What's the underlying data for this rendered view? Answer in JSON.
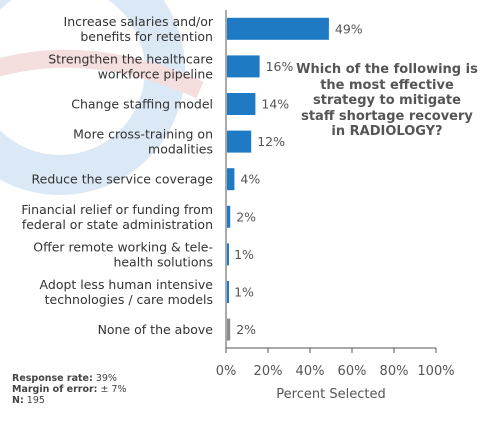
{
  "chart_data": {
    "type": "bar",
    "orientation": "horizontal",
    "categories": [
      [
        "Increase salaries and/or",
        "benefits for retention"
      ],
      [
        "Strengthen the healthcare",
        "workforce pipeline"
      ],
      [
        "Change staffing model"
      ],
      [
        "More cross-training on",
        "modalities"
      ],
      [
        "Reduce the service coverage"
      ],
      [
        "Financial relief or funding from",
        "federal or state administration"
      ],
      [
        "Offer remote working & tele-",
        "health solutions"
      ],
      [
        "Adopt less human intensive",
        "technologies / care models"
      ],
      [
        "None of the above"
      ]
    ],
    "values": [
      49,
      16,
      14,
      12,
      4,
      2,
      1,
      1,
      2
    ],
    "value_labels": [
      "49%",
      "16%",
      "14%",
      "12%",
      "4%",
      "2%",
      "1%",
      "1%",
      "2%"
    ],
    "bar_colors": [
      "#1f7ac4",
      "#1f7ac4",
      "#1f7ac4",
      "#1f7ac4",
      "#1f7ac4",
      "#1f7ac4",
      "#1f7ac4",
      "#1f7ac4",
      "#8c8c8c"
    ],
    "xlim": [
      0,
      100
    ],
    "xticks": [
      "0%",
      "20%",
      "40%",
      "60%",
      "80%",
      "100%"
    ],
    "xlabel": "Percent Selected",
    "title": "Which of the following is the most effective strategy to mitigate staff shortage recovery in RADIOLOGY?",
    "grid": false
  },
  "stats": {
    "response_rate_label": "Response rate:",
    "response_rate_value": "39%",
    "margin_label": "Margin of error:",
    "margin_value": "± 7%",
    "n_label": "N:",
    "n_value": "195"
  },
  "colors": {
    "bar": "#1f7ac4",
    "bar_other": "#8c8c8c",
    "axis": "#555555"
  }
}
